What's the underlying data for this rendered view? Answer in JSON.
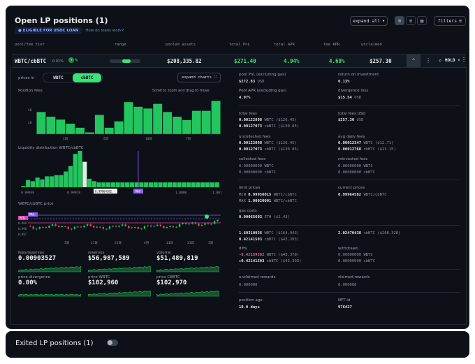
{
  "header": {
    "title": "Open LP positions (1)",
    "badge": "ELIGIBLE FOR USDC LOAN",
    "loan_link": "How do loans work?",
    "expand_label": "expand all",
    "filters_label": "filters"
  },
  "columns": [
    "pool/fee tier",
    "range",
    "pooled assets",
    "total PnL",
    "total APR",
    "fee APR",
    "unclaimed"
  ],
  "position": {
    "pair": "WBTC/cbBTC",
    "fee": "0.01%",
    "pooled_assets": "$208,335.82",
    "total_pnl": "$271.40",
    "total_apr": "4.94%",
    "fee_apr": "4.69%",
    "unclaimed": "$257.30",
    "hold_label": "HOLD"
  },
  "details": {
    "prices_in_label": "prices in",
    "token_a": "WBTC",
    "token_b": "cbBTC",
    "expand_charts": "expand charts",
    "position_fees_title": "Position fees",
    "scroll_hint": "Scroll to zoom and drag to move",
    "liq_title": "Liquidity distribution WBTC/cbBTC",
    "price_title": "WBTC/cbBTC price",
    "stats": [
      {
        "label": "fees/reserves",
        "value": "0.00903527"
      },
      {
        "label": "reserves",
        "value": "$56,987,589"
      },
      {
        "label": "volume",
        "value": "$51,489,819"
      },
      {
        "label": "price divergence",
        "value": "0.00%"
      },
      {
        "label": "price WBTC",
        "value": "$102,960"
      },
      {
        "label": "price CBBTC",
        "value": "$102,970"
      }
    ],
    "right": {
      "pool_pnl_label": "pool PnL (excluding gas)",
      "pool_pnl": "$272.83",
      "pool_pnl_unit": "USD",
      "roi_label": "return on investment",
      "roi": "0.13%",
      "pool_apr_label": "Pool APR (excluding gas)",
      "pool_apr": "4.97%",
      "div_loss_label": "divergence loss",
      "div_loss": "$15.54",
      "div_loss_unit": "USD",
      "total_fees_label": "total fees",
      "tf1": "0.00122898",
      "tf1u": "WBTC ($126.45)",
      "tf2": "0.00127073",
      "tf2u": "cbBTC ($130.85)",
      "total_fees_usd_label": "total fees USD",
      "total_fees_usd": "$257.30",
      "total_fees_usd_unit": "USD",
      "uncollected_label": "uncollected fees",
      "uc1": "0.00122898",
      "uc1u": "WBTC ($126.45)",
      "uc2": "0.00127073",
      "uc2u": "cbBTC ($130.85)",
      "avg_daily_label": "avg daily fees",
      "ad1": "0.00012347",
      "ad1u": "WBTC ($12.71)",
      "ad2": "0.00012768",
      "ad2u": "cbBTC ($13.15)",
      "collected_label": "collected fees",
      "cf1": "0.00000000",
      "cf1u": "WBTC",
      "cf2": "0.00000000",
      "cf2u": "cbBTC",
      "reinvested_label": "reinvested fees",
      "rf1": "0.00000000",
      "rf1u": "WBTC",
      "rf2": "0.00000000",
      "rf2u": "cbBTC",
      "limit_label": "limit prices",
      "min_label": "MIN",
      "min": "0.99950015",
      "min_u": "WBTC/cbBTC",
      "max_label": "MAX",
      "max": "1.00020001",
      "max_u": "WBTC/cbBTC",
      "current_label": "current prices",
      "current": "0.99964582",
      "current_u": "WBTC/cbBTC",
      "gas_label": "gas costs",
      "gas": "0.00065603",
      "gas_u": "ETH ($1.43)",
      "p1": "1.60310936",
      "p1u": "WBTC ($164,943)",
      "p2": "0.42141503",
      "p2u": "cbBTC ($43,393)",
      "p3": "2.02470438",
      "p3u": "cbBTC ($208,328)",
      "diffs_label": "diffs",
      "d1": "-0.42159582",
      "d1u": "WBTC ($43,378)",
      "d2": "+0.42141503",
      "d2u": "cbBTC ($43,393)",
      "withdrawn_label": "withdrawn",
      "w1": "0.00000000",
      "w1u": "WBTC",
      "w2": "0.00000000",
      "w2u": "cbBTC",
      "unclaimed_rewards_label": "unclaimed rewards",
      "unclaimed_rewards": "0.000000",
      "claimed_rewards_label": "claimed rewards",
      "claimed_rewards": "0.000000",
      "age_label": "position age",
      "age": "10.0 days",
      "nft_label": "NFT id",
      "nft": "976427"
    }
  },
  "exited": {
    "title": "Exited LP positions (1)"
  },
  "fee_axis": {
    "y": [
      "40",
      "20"
    ],
    "x": [
      "1日",
      "5日",
      "10日",
      "7日"
    ]
  },
  "liq_axis": {
    "x": [
      "0.99938",
      "0.99928",
      "0.99964582",
      "MAX",
      "1.0000",
      "1.001"
    ]
  },
  "price_axis": {
    "y": [
      "0.999",
      "0.998",
      "0.997"
    ],
    "x": [
      "3周",
      "11日",
      "21日",
      "4月",
      "11日",
      "21日",
      "3周"
    ],
    "min_tag": "MIN",
    "max_tag": "MAX"
  },
  "chart_data": [
    {
      "type": "bar",
      "title": "Position fees",
      "values": [
        38,
        30,
        25,
        18,
        11,
        3,
        33,
        11,
        22,
        55,
        47,
        44,
        52,
        38,
        30,
        24,
        40,
        40,
        57
      ],
      "ylim": [
        0,
        60
      ]
    },
    {
      "type": "bar",
      "title": "Liquidity distribution WBTC/cbBTC",
      "values": [
        2,
        12,
        10,
        16,
        13,
        18,
        18,
        20,
        20,
        26,
        35,
        55,
        60,
        42,
        14,
        10,
        8,
        8,
        8,
        8,
        8,
        8,
        8,
        8,
        8,
        8,
        8,
        8,
        8,
        8,
        8,
        8,
        8,
        8,
        8,
        8,
        8,
        8,
        8,
        8,
        8,
        8
      ],
      "highlight": 13,
      "ylim": [
        0,
        60
      ]
    },
    {
      "type": "line",
      "title": "WBTC/cbBTC price"
    }
  ]
}
